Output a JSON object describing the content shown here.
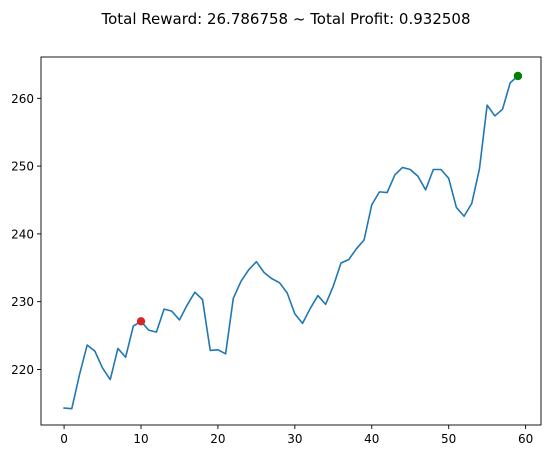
{
  "chart_data": {
    "type": "line",
    "title": "Total Reward: 26.786758 ~ Total Profit: 0.932508",
    "xlabel": "",
    "ylabel": "",
    "xlim": [
      -3,
      62
    ],
    "ylim": [
      211.8,
      266.1
    ],
    "grid": false,
    "x_ticks": [
      0,
      10,
      20,
      30,
      40,
      50,
      60
    ],
    "y_ticks": [
      220,
      230,
      240,
      250,
      260
    ],
    "series": [
      {
        "color": "#1f77b4",
        "x": [
          0,
          1,
          2,
          3,
          4,
          5,
          6,
          7,
          8,
          9,
          10,
          11,
          12,
          13,
          14,
          15,
          16,
          17,
          18,
          19,
          20,
          21,
          22,
          23,
          24,
          25,
          26,
          27,
          28,
          29,
          30,
          31,
          32,
          33,
          34,
          35,
          36,
          37,
          38,
          39,
          40,
          41,
          42,
          43,
          44,
          45,
          46,
          47,
          48,
          49,
          50,
          51,
          52,
          53,
          54,
          55,
          56,
          57,
          58,
          59
        ],
        "y": [
          214.3,
          214.2,
          219.2,
          223.6,
          222.7,
          220.2,
          218.5,
          223.1,
          221.8,
          226.4,
          227.1,
          225.8,
          225.5,
          228.9,
          228.6,
          227.3,
          229.5,
          231.4,
          230.3,
          222.8,
          222.9,
          222.3,
          230.5,
          233.0,
          234.7,
          235.9,
          234.3,
          233.4,
          232.8,
          231.3,
          228.2,
          226.8,
          229.0,
          230.9,
          229.6,
          232.3,
          235.7,
          236.2,
          237.8,
          239.1,
          244.3,
          246.2,
          246.1,
          248.7,
          249.8,
          249.5,
          248.5,
          246.5,
          249.5,
          249.5,
          248.2,
          243.9,
          242.6,
          244.5,
          249.6,
          259.0,
          257.4,
          258.4,
          262.3,
          263.3
        ]
      }
    ],
    "markers": [
      {
        "x": 10,
        "y": 227.1,
        "color": "#d62728"
      },
      {
        "x": 59,
        "y": 263.3,
        "color": "#008000"
      }
    ]
  }
}
